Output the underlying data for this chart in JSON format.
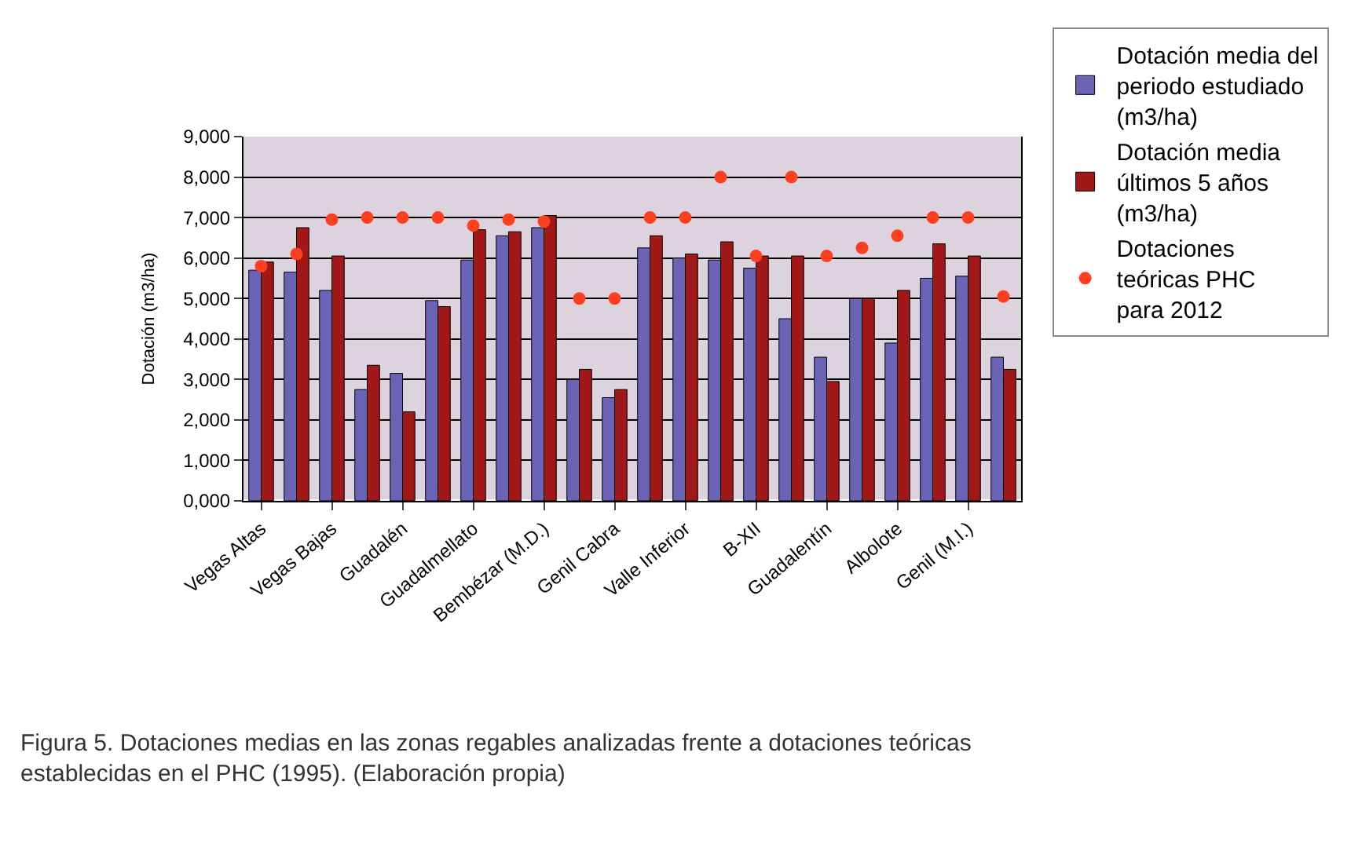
{
  "chart_data": {
    "type": "bar",
    "ylabel": "Dotación (m3/ha)",
    "categories": [
      "Vegas Altas",
      null,
      "Vegas Bajas",
      null,
      "Guadalén",
      null,
      "Guadalmellato",
      null,
      "Bembézar (M.D.)",
      null,
      "Genil Cabra",
      null,
      "Valle Inferior",
      null,
      "B-XII",
      null,
      "Guadalentín",
      null,
      "Albolote",
      null,
      "Genil (M.I.)",
      null
    ],
    "series": [
      {
        "name": "Dotación media del periodo estudiado (m3/ha)",
        "color": "#6b63b5",
        "values": [
          5700,
          5650,
          5200,
          2750,
          3150,
          4950,
          5950,
          6550,
          6750,
          3000,
          2550,
          6250,
          6000,
          5950,
          5750,
          4500,
          3550,
          5000,
          3900,
          5500,
          5550,
          3550
        ]
      },
      {
        "name": "Dotación media últimos 5 años (m3/ha)",
        "color": "#a01818",
        "values": [
          5900,
          6750,
          6050,
          3350,
          2200,
          4800,
          6700,
          6650,
          7050,
          3250,
          2750,
          6550,
          6100,
          6400,
          6050,
          6050,
          2950,
          5000,
          5200,
          6350,
          6050,
          3250
        ]
      },
      {
        "name": "Dotaciones teóricas PHC para 2012",
        "type": "scatter",
        "marker": "circle",
        "color": "#ff4020",
        "values": [
          5800,
          6100,
          6950,
          7000,
          7000,
          7000,
          6800,
          6950,
          6900,
          5000,
          5000,
          7000,
          7000,
          8000,
          6050,
          8000,
          6050,
          6250,
          6550,
          7000,
          7000,
          5050
        ]
      }
    ],
    "ylim": [
      0,
      9000
    ],
    "yticks": [
      {
        "value": 0,
        "label": "0,000"
      },
      {
        "value": 1000,
        "label": "1,000"
      },
      {
        "value": 2000,
        "label": "2,000"
      },
      {
        "value": 3000,
        "label": "3,000"
      },
      {
        "value": 4000,
        "label": "4,000"
      },
      {
        "value": 5000,
        "label": "5,000"
      },
      {
        "value": 6000,
        "label": "6,000"
      },
      {
        "value": 7000,
        "label": "7,000"
      },
      {
        "value": 8000,
        "label": "8,000"
      },
      {
        "value": 9000,
        "label": "9,000"
      }
    ],
    "grid": "y",
    "legend": "right",
    "annotations": [
      "Figura 5. Dotaciones medias en las zonas regables analizadas frente a dotaciones teóricas establecidas en el PHC (1995). (Elaboración propia)"
    ]
  }
}
